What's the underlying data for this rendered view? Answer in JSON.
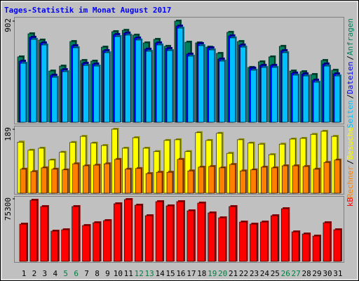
{
  "chart_data": [
    {
      "type": "bar",
      "title": "Tages-Statistik im Monat August 2017",
      "series": [
        {
          "name": "Anfragen",
          "color": "#00805c",
          "values": [
            583,
            789,
            733,
            457,
            501,
            720,
            551,
            545,
            670,
            808,
            820,
            777,
            708,
            739,
            677,
            902,
            714,
            708,
            670,
            614,
            802,
            720,
            489,
            539,
            583,
            677,
            457,
            451,
            426,
            551,
            464
          ]
        },
        {
          "name": "Dateien",
          "color": "#0000ff",
          "values": [
            545,
            758,
            708,
            420,
            470,
            683,
            526,
            520,
            639,
            783,
            796,
            752,
            652,
            708,
            658,
            858,
            608,
            702,
            664,
            564,
            771,
            689,
            483,
            508,
            508,
            639,
            439,
            432,
            376,
            520,
            432
          ]
        },
        {
          "name": "Seiten",
          "color": "#00c0ff",
          "values": [
            526,
            739,
            689,
            401,
            451,
            664,
            507,
            501,
            620,
            764,
            777,
            733,
            633,
            689,
            639,
            839,
            589,
            683,
            645,
            545,
            752,
            670,
            464,
            489,
            489,
            620,
            420,
            413,
            357,
            501,
            413
          ]
        }
      ],
      "legend_separator": "/",
      "ylim": [
        0,
        902
      ],
      "yticks": [
        902
      ]
    },
    {
      "type": "bar",
      "series": [
        {
          "name": "Besuche",
          "color": "#ffff00",
          "values": [
            151,
            127,
            133,
            98,
            121,
            150,
            168,
            148,
            141,
            189,
            133,
            164,
            133,
            123,
            156,
            158,
            123,
            179,
            156,
            177,
            118,
            158,
            148,
            145,
            114,
            145,
            160,
            162,
            174,
            183,
            168
          ]
        },
        {
          "name": "Rechner",
          "color": "#ff8000",
          "values": [
            71,
            64,
            75,
            71,
            69,
            87,
            81,
            83,
            87,
            100,
            71,
            73,
            58,
            62,
            62,
            100,
            66,
            77,
            79,
            75,
            85,
            66,
            69,
            77,
            75,
            81,
            81,
            79,
            71,
            91,
            98
          ]
        }
      ],
      "legend_separator": "/",
      "ylim": [
        0,
        189
      ],
      "yticks": [
        189
      ]
    },
    {
      "type": "bar",
      "categories": [
        "1",
        "2",
        "3",
        "4",
        "5",
        "6",
        "7",
        "8",
        "9",
        "10",
        "11",
        "12",
        "13",
        "14",
        "15",
        "16",
        "17",
        "18",
        "19",
        "20",
        "21",
        "22",
        "23",
        "24",
        "25",
        "26",
        "27",
        "28",
        "29",
        "30",
        "31"
      ],
      "highlight": [
        4,
        5,
        11,
        12,
        18,
        19,
        25,
        26
      ],
      "highlight_color": "#008040",
      "series": [
        {
          "name": "kB",
          "color": "#ff0000",
          "values": [
            44840,
            73600,
            66000,
            36380,
            38070,
            66000,
            43150,
            46530,
            49070,
            69370,
            74450,
            67680,
            54990,
            71910,
            66840,
            71910,
            60910,
            70220,
            58370,
            52450,
            66000,
            47370,
            44840,
            47370,
            54990,
            63450,
            35530,
            32990,
            30450,
            46530,
            38070
          ]
        }
      ],
      "ylim": [
        0,
        75300
      ],
      "yticks": [
        75300
      ]
    }
  ]
}
